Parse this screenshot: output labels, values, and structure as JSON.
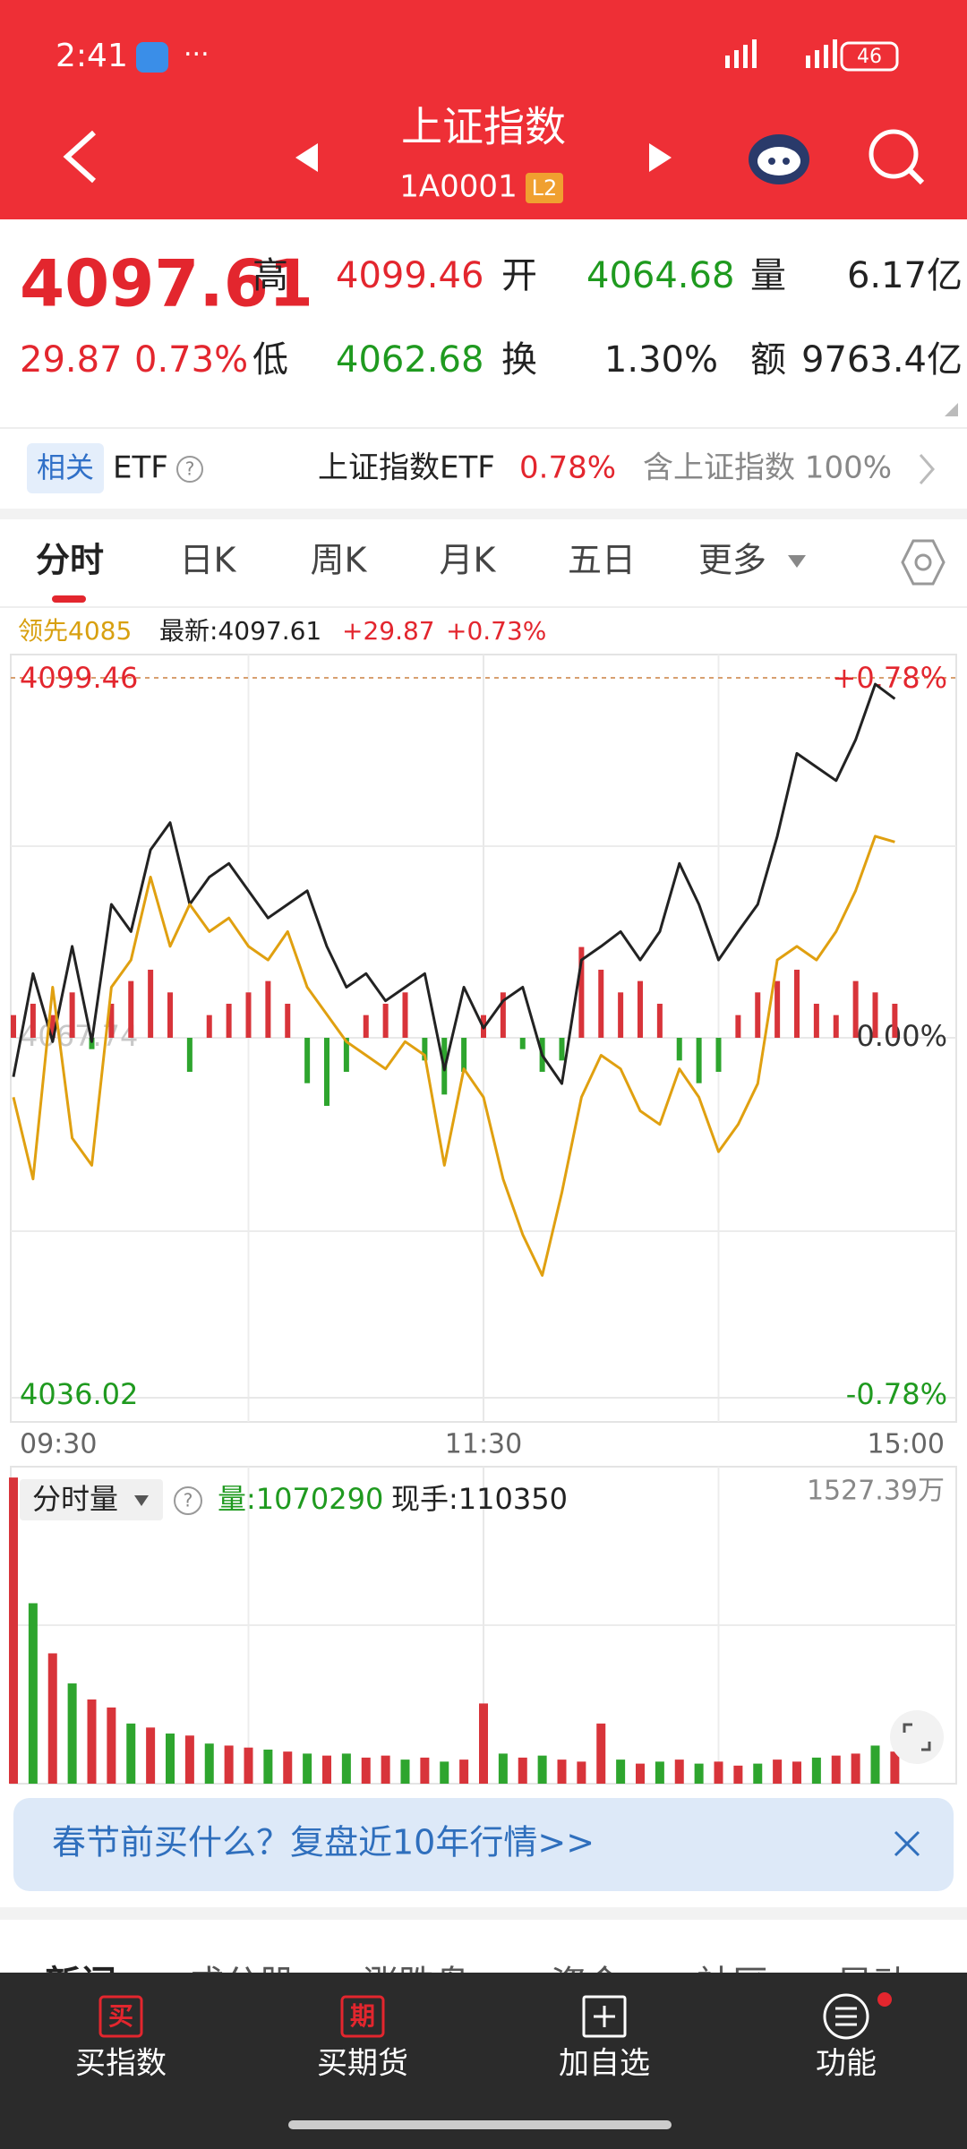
{
  "status": {
    "time": "2:41",
    "battery": "46"
  },
  "header": {
    "title": "上证指数",
    "code": "1A0001",
    "badge": "L2"
  },
  "quote": {
    "price": "4097.61",
    "change": "29.87",
    "pct": "0.73%",
    "fields": [
      {
        "label": "高",
        "value": "4099.46"
      },
      {
        "label": "开",
        "value": "4064.68"
      },
      {
        "label": "量",
        "value": "6.17亿"
      },
      {
        "label": "低",
        "value": "4062.68"
      },
      {
        "label": "换",
        "value": "1.30%"
      },
      {
        "label": "额",
        "value": "9763.4亿"
      }
    ]
  },
  "etf": {
    "tag": "相关",
    "kind": "ETF",
    "name": "上证指数ETF",
    "pct": "0.78%",
    "holding": "含上证指数 100%"
  },
  "tabs": [
    "分时",
    "日K",
    "周K",
    "月K",
    "五日",
    "更多"
  ],
  "chart_data": [
    {
      "type": "line",
      "legend": {
        "lead": "领先4085",
        "latest": "最新:4097.61",
        "change": "+29.87",
        "pct": "+0.73%"
      },
      "categories": [
        "09:30",
        null,
        null,
        null,
        null,
        null,
        null,
        null,
        null,
        null,
        null,
        null,
        null,
        null,
        null,
        null,
        null,
        null,
        null,
        null,
        null,
        null,
        null,
        null,
        "11:30",
        null,
        null,
        null,
        null,
        null,
        null,
        null,
        null,
        null,
        null,
        null,
        null,
        null,
        null,
        null,
        null,
        null,
        null,
        null,
        null,
        null,
        null,
        null,
        "15:00"
      ],
      "series": [
        {
          "color": "#222222",
          "values": [
            4064.3,
            4073.4,
            4067.4,
            4075.8,
            4067.4,
            4079.5,
            4077.1,
            4084.3,
            4086.7,
            4079.5,
            4081.9,
            4083.1,
            4080.7,
            4078.3,
            4079.5,
            4080.7,
            4075.8,
            4072.2,
            4073.4,
            4071.0,
            4072.2,
            4073.4,
            4064.9,
            4072.2,
            4068.6,
            4071.0,
            4072.2,
            4066.2,
            4063.7,
            4074.6,
            4075.8,
            4077.1,
            4074.6,
            4077.1,
            4083.1,
            4079.5,
            4074.6,
            4077.1,
            4079.5,
            4085.5,
            4092.8,
            4091.6,
            4090.4,
            4094.0,
            4098.9,
            4097.61,
            null,
            null,
            null
          ]
        },
        {
          "color": "#e0a010",
          "values": [
            4062.5,
            4055.3,
            4072.2,
            4058.9,
            4056.5,
            4072.2,
            4074.6,
            4081.9,
            4075.8,
            4079.5,
            4077.1,
            4078.3,
            4075.8,
            4074.6,
            4077.1,
            4072.2,
            4069.8,
            4067.4,
            4066.2,
            4065.0,
            4067.4,
            4066.2,
            4056.5,
            4065.0,
            4062.5,
            4055.3,
            4050.4,
            4046.8,
            4054.1,
            4062.5,
            4066.2,
            4065.0,
            4061.3,
            4060.1,
            4065.0,
            4062.5,
            4057.7,
            4060.1,
            4063.7,
            4074.6,
            4075.8,
            4074.6,
            4077.1,
            4080.7,
            4085.5,
            4085,
            null,
            null,
            null
          ]
        }
      ],
      "bar_values": [
        2,
        3,
        2,
        4,
        -1,
        3,
        5,
        6,
        4,
        -3,
        2,
        3,
        4,
        5,
        3,
        -4,
        -6,
        -3,
        2,
        3,
        4,
        -2,
        -5,
        -3,
        2,
        4,
        -1,
        -3,
        -2,
        8,
        6,
        4,
        5,
        3,
        -2,
        -4,
        -3,
        2,
        4,
        5,
        6,
        3,
        2,
        5,
        4,
        3
      ],
      "up_color": "#d8343a",
      "down_color": "#2ea52e",
      "ylim": [
        4036.02,
        4099.46
      ],
      "yticks": [
        4099.46,
        4067.74,
        4036.02
      ],
      "y2lim": [
        -0.78,
        0.78
      ],
      "y2ticks": [
        {
          "value": 0.78,
          "label": "+0.78%"
        },
        {
          "value": 0,
          "label": "0.00%"
        },
        {
          "value": -0.78,
          "label": "-0.78%"
        }
      ]
    },
    {
      "type": "bar",
      "title": "分时量",
      "readout": "量:1070290",
      "hand": "现手:110350",
      "values": [
        1527,
        900,
        650,
        500,
        420,
        380,
        300,
        280,
        250,
        240,
        200,
        190,
        180,
        170,
        160,
        150,
        140,
        150,
        130,
        140,
        120,
        130,
        110,
        120,
        400,
        150,
        130,
        140,
        120,
        110,
        300,
        120,
        100,
        110,
        120,
        100,
        110,
        90,
        100,
        120,
        110,
        130,
        140,
        150,
        190,
        160
      ],
      "directions": [
        "up",
        "down",
        "up",
        "down",
        "up",
        "up",
        "down",
        "up",
        "down",
        "up",
        "down",
        "up",
        "up",
        "down",
        "up",
        "down",
        "up",
        "down",
        "up",
        "up",
        "down",
        "up",
        "down",
        "up",
        "up",
        "down",
        "up",
        "down",
        "up",
        "up",
        "up",
        "down",
        "up",
        "down",
        "up",
        "down",
        "up",
        "up",
        "down",
        "up",
        "up",
        "down",
        "up",
        "up",
        "down",
        "up"
      ],
      "up_color": "#d8343a",
      "down_color": "#2ea52e",
      "ylim": [
        0,
        1527.39
      ],
      "yticks": [
        {
          "value": 1527.39,
          "label": "1527.39万"
        }
      ]
    }
  ],
  "banner": "春节前买什么？复盘近10年行情>>",
  "news_tabs": [
    "新闻",
    "成分股",
    "涨跌盘",
    "资金",
    "社区",
    "异动"
  ],
  "nav": [
    {
      "icon": "买",
      "label": "买指数"
    },
    {
      "icon": "期",
      "label": "买期货"
    },
    {
      "label": "加自选"
    },
    {
      "label": "功能"
    }
  ]
}
